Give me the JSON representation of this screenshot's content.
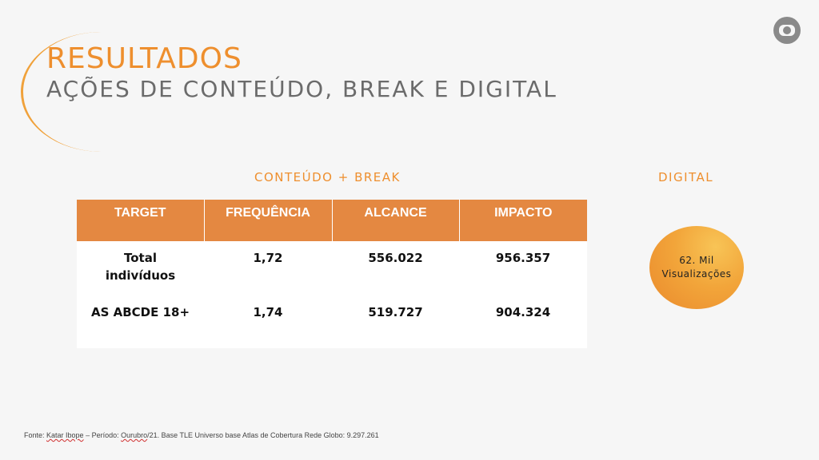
{
  "header": {
    "title": "RESULTADOS",
    "subtitle": "AÇÕES DE CONTEÚDO, BREAK E DIGITAL"
  },
  "logo": {
    "icon": "globo-logo-icon",
    "color": "#8a8a8a"
  },
  "sections": {
    "conteudo_label": "CONTEÚDO + BREAK",
    "digital_label": "DIGITAL"
  },
  "table": {
    "columns": [
      "TARGET",
      "FREQUÊNCIA",
      "ALCANCE",
      "IMPACTO"
    ],
    "rows": [
      {
        "target": "Total\nindivíduos",
        "frequencia": "1,72",
        "alcance": "556.022",
        "impacto": "956.357"
      },
      {
        "target": "AS ABCDE  18+",
        "frequencia": "1,74",
        "alcance": "519.727",
        "impacto": "904.324"
      }
    ],
    "header_color": "#e48841"
  },
  "digital": {
    "value_text": "62. Mil\nVisualizações"
  },
  "footer": {
    "prefix": "Fonte: ",
    "source_1": "Katar Ibope",
    "middle": " – Período: ",
    "source_2": "Ourubro",
    "suffix": "/21. Base TLE  Universo base Atlas de Cobertura Rede Globo: 9.297.261"
  },
  "colors": {
    "accent": "#ee8f2e",
    "subtitle": "#6b6b6b",
    "background": "#f6f6f6"
  }
}
